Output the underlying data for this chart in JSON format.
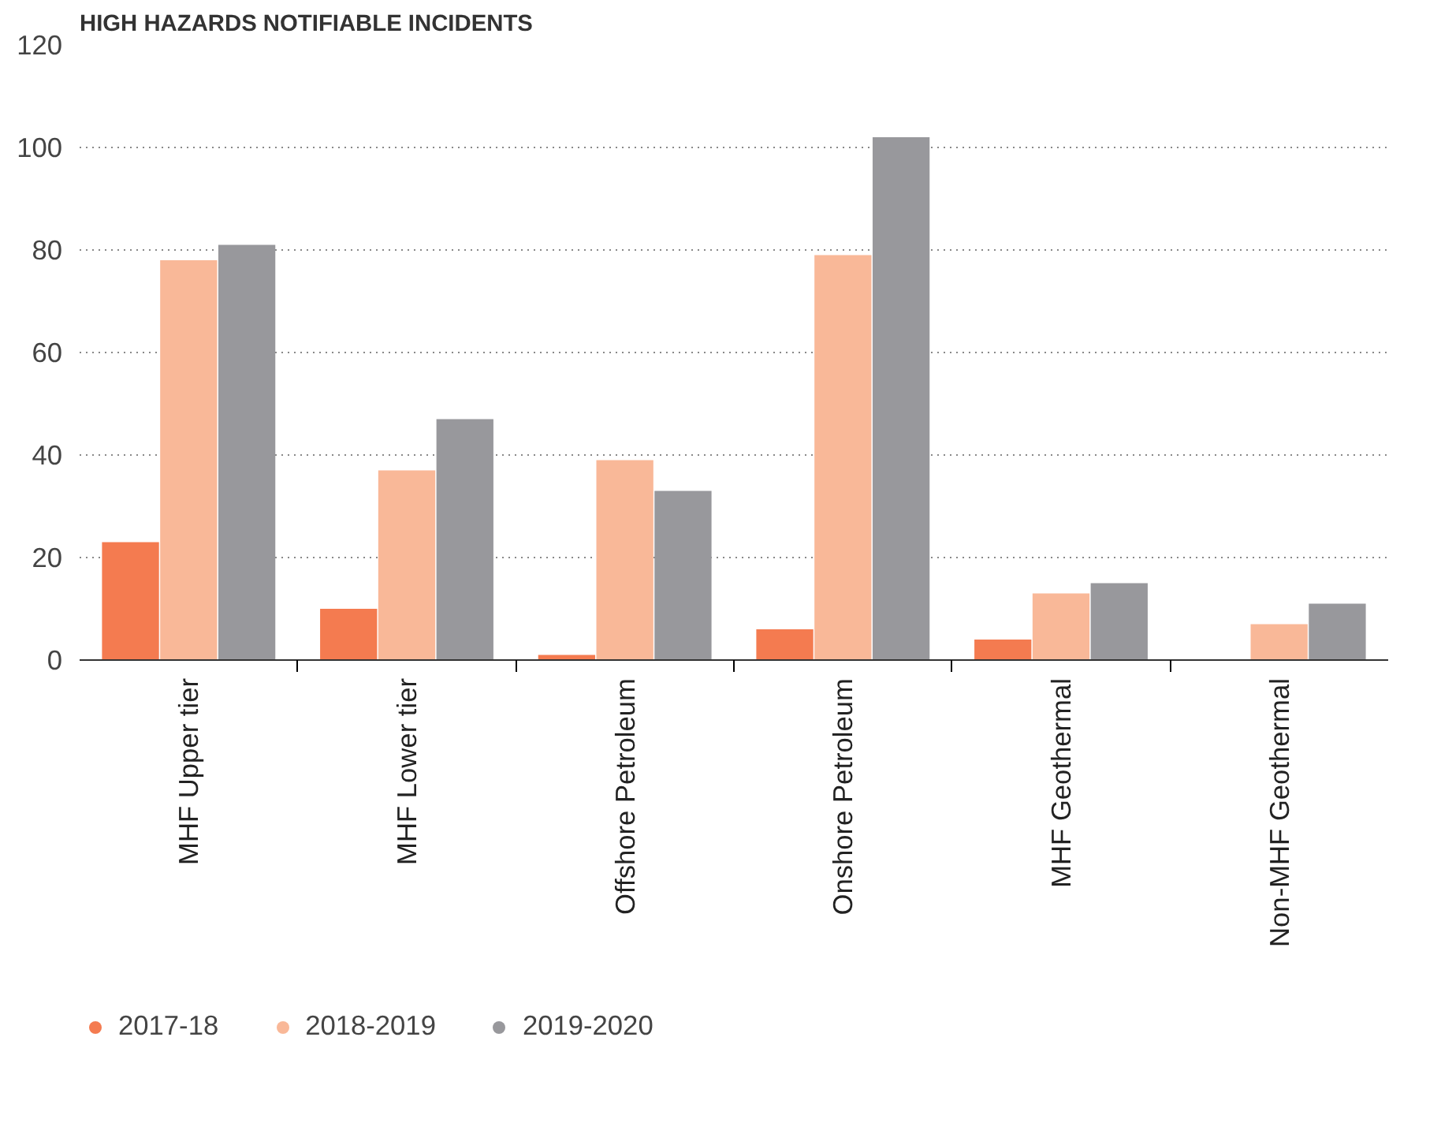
{
  "chart_data": {
    "type": "bar",
    "title": "HIGH HAZARDS NOTIFIABLE INCIDENTS",
    "categories": [
      "MHF Upper tier",
      "MHF Lower tier",
      "Offshore Petroleum",
      "Onshore Petroleum",
      "MHF Geothermal",
      "Non-MHF Geothermal"
    ],
    "series": [
      {
        "name": "2017-18",
        "color": "#f47b50",
        "values": [
          23,
          10,
          1,
          6,
          4,
          null
        ]
      },
      {
        "name": "2018-2019",
        "color": "#f9b898",
        "values": [
          78,
          37,
          39,
          79,
          13,
          7
        ]
      },
      {
        "name": "2019-2020",
        "color": "#98989c",
        "values": [
          81,
          47,
          33,
          102,
          15,
          11
        ]
      }
    ],
    "ylim": [
      0,
      120
    ],
    "yticks": [
      0,
      20,
      40,
      60,
      80,
      100,
      120
    ],
    "grid": "y",
    "legend": "bottom left"
  }
}
